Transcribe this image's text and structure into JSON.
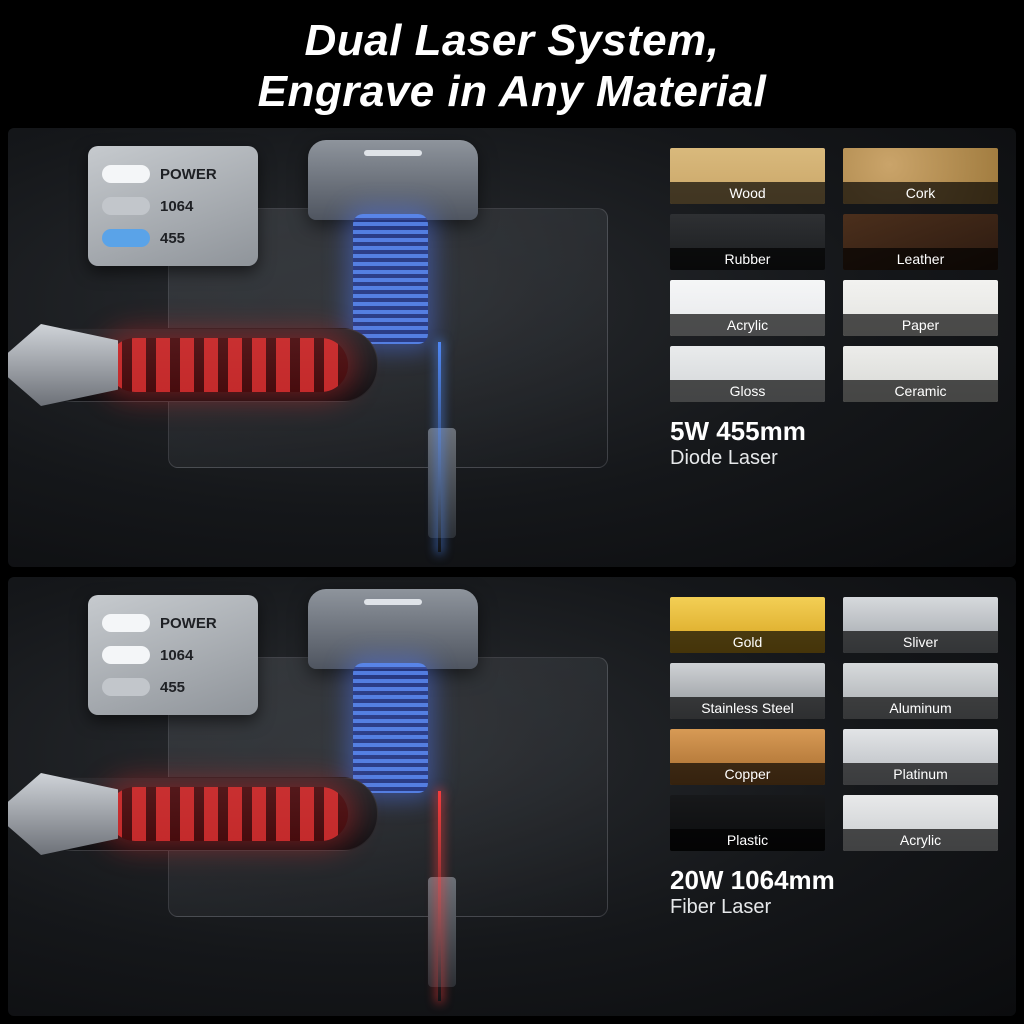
{
  "heading": {
    "line1": "Dual Laser System,",
    "line2": "Engrave in Any Material"
  },
  "colors": {
    "page_bg": "#000000",
    "text": "#ffffff",
    "beam_blue": "#4f8cff",
    "beam_red": "#ff3c3c",
    "badge_bg_top": "#c6cace",
    "badge_bg_bottom": "#8f949a",
    "badge_text": "#1e2024",
    "pill_white": "#f4f6f8",
    "pill_grey": "#c2c6cb",
    "pill_blue": "#5aa3e8"
  },
  "panels": [
    {
      "id": "diode",
      "beam_color": "blue",
      "power_badge": {
        "rows": [
          {
            "label": "POWER",
            "pill_color": "#f4f6f8"
          },
          {
            "label": "1064",
            "pill_color": "#c2c6cb"
          },
          {
            "label": "455",
            "pill_color": "#5aa3e8"
          }
        ]
      },
      "materials": {
        "items": [
          {
            "label": "Wood",
            "bg": "linear-gradient(180deg,#d9b97c,#c9a668)"
          },
          {
            "label": "Cork",
            "bg": "radial-gradient(circle at 30% 30%,#caa46a,#a07b3e)"
          },
          {
            "label": "Rubber",
            "bg": "linear-gradient(180deg,#2e3033,#1b1d1f)"
          },
          {
            "label": "Leather",
            "bg": "linear-gradient(160deg,#4b2f1c,#2c1a10)"
          },
          {
            "label": "Acrylic",
            "bg": "linear-gradient(180deg,#f5f6f7,#e6e8ea)"
          },
          {
            "label": "Paper",
            "bg": "linear-gradient(180deg,#f2f2f0,#e3e3df)"
          },
          {
            "label": "Gloss",
            "bg": "linear-gradient(180deg,#e9ebec,#d2d5d7)"
          },
          {
            "label": "Ceramic",
            "bg": "linear-gradient(180deg,#ececea,#d7d8d4)"
          }
        ],
        "title": "5W 455mm",
        "subtitle": "Diode Laser"
      }
    },
    {
      "id": "fiber",
      "beam_color": "red",
      "power_badge": {
        "rows": [
          {
            "label": "POWER",
            "pill_color": "#f4f6f8"
          },
          {
            "label": "1064",
            "pill_color": "#f4f6f8"
          },
          {
            "label": "455",
            "pill_color": "#c2c6cb"
          }
        ]
      },
      "materials": {
        "items": [
          {
            "label": "Gold",
            "bg": "linear-gradient(180deg,#f3cf55,#d6a21e)"
          },
          {
            "label": "Sliver",
            "bg": "linear-gradient(180deg,#d6d9dc,#9fa4aa)"
          },
          {
            "label": "Stainless Steel",
            "bg": "linear-gradient(180deg,#cfd2d5,#8e9297)"
          },
          {
            "label": "Aluminum",
            "bg": "linear-gradient(180deg,#d7dadc,#a7abaf)"
          },
          {
            "label": "Copper",
            "bg": "linear-gradient(180deg,#d79a55,#a56a2d)"
          },
          {
            "label": "Platinum",
            "bg": "linear-gradient(180deg,#e2e4e6,#b6bac0)"
          },
          {
            "label": "Plastic",
            "bg": "linear-gradient(180deg,#17181a,#0c0d0e)"
          },
          {
            "label": "Acrylic",
            "bg": "linear-gradient(180deg,#e8e9ea,#c9cccf)"
          }
        ],
        "title": "20W 1064mm",
        "subtitle": "Fiber Laser"
      }
    }
  ]
}
